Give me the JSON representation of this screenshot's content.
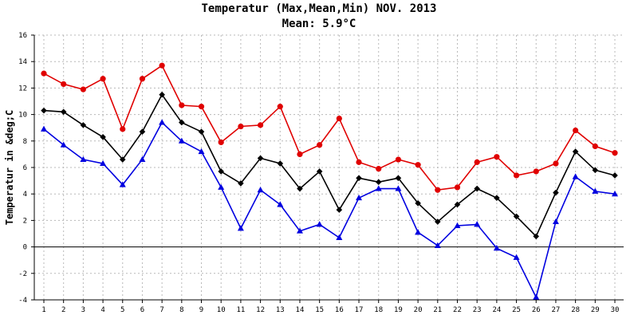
{
  "chart_data": {
    "type": "line",
    "title": "Temperatur (Max,Mean,Min) NOV. 2013",
    "subtitle": "Mean: 5.9°C",
    "ylabel": "Temperatur in &deg;C",
    "xlabel": "",
    "ylim": [
      -4,
      16
    ],
    "xlim": [
      1,
      30
    ],
    "yticks": [
      -4,
      -2,
      0,
      2,
      4,
      6,
      8,
      10,
      12,
      14,
      16
    ],
    "x": [
      1,
      2,
      3,
      4,
      5,
      6,
      7,
      8,
      9,
      10,
      11,
      12,
      13,
      14,
      15,
      16,
      17,
      18,
      19,
      20,
      21,
      22,
      23,
      24,
      25,
      26,
      27,
      28,
      29,
      30
    ],
    "grid": true,
    "legend": "none",
    "series": [
      {
        "key": "max",
        "color": "#e00000",
        "marker": "circle",
        "values": [
          13.1,
          12.3,
          11.9,
          12.7,
          8.9,
          12.7,
          13.7,
          10.7,
          10.6,
          7.9,
          9.1,
          9.2,
          10.6,
          7.0,
          7.7,
          9.7,
          6.4,
          5.9,
          6.6,
          6.2,
          4.3,
          4.5,
          6.4,
          6.8,
          5.4,
          5.7,
          6.3,
          8.8,
          7.6,
          7.1
        ]
      },
      {
        "key": "mean",
        "color": "#000000",
        "marker": "diamond",
        "values": [
          10.3,
          10.2,
          9.2,
          8.3,
          6.6,
          8.7,
          11.5,
          9.4,
          8.7,
          5.7,
          4.8,
          6.7,
          6.3,
          4.4,
          5.7,
          2.8,
          5.2,
          4.9,
          5.2,
          3.3,
          1.9,
          3.2,
          4.4,
          3.7,
          2.3,
          0.8,
          4.1,
          7.2,
          5.8,
          5.4
        ]
      },
      {
        "key": "min",
        "color": "#0000e0",
        "marker": "triangle",
        "values": [
          8.9,
          7.7,
          6.6,
          6.3,
          4.7,
          6.6,
          9.4,
          8.0,
          7.2,
          4.5,
          1.4,
          4.3,
          3.2,
          1.2,
          1.7,
          0.7,
          3.7,
          4.4,
          4.4,
          1.1,
          0.1,
          1.6,
          1.7,
          -0.1,
          -0.8,
          -3.8,
          1.9,
          5.3,
          4.2,
          4.0
        ]
      }
    ]
  }
}
